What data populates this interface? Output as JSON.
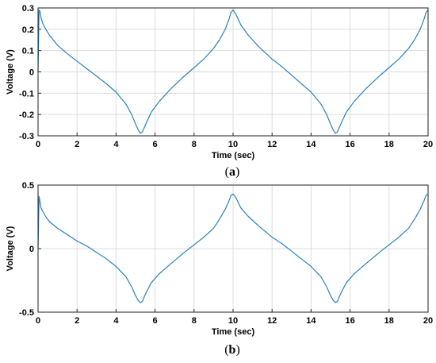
{
  "chart_data": [
    {
      "type": "line",
      "id": "a",
      "caption_letter": "a",
      "xlabel": "Time (sec)",
      "ylabel": "Voltage (V)",
      "xlim": [
        0,
        20
      ],
      "ylim": [
        -0.3,
        0.3
      ],
      "xticks": [
        0,
        2,
        4,
        6,
        8,
        10,
        12,
        14,
        16,
        18,
        20
      ],
      "yticks": [
        -0.3,
        -0.2,
        -0.1,
        0,
        0.1,
        0.2,
        0.3
      ],
      "ytick_labels": [
        "-0.3",
        "-0.2",
        "-0.1",
        "0",
        "0.1",
        "0.2",
        "0.3"
      ],
      "grid": true,
      "color": "#2a7fc0",
      "series": [
        {
          "x": [
            0,
            0.05,
            0.1,
            0.15,
            0.25,
            0.4,
            0.6,
            1.0,
            1.5,
            2.0,
            2.5,
            3.0,
            3.5,
            4.0,
            4.5,
            4.8,
            5.0,
            5.15,
            5.25,
            5.35,
            5.5,
            5.8,
            6.2,
            6.8,
            7.5,
            8.0,
            8.5,
            9.0,
            9.3,
            9.6,
            9.8,
            9.9,
            10.0,
            10.15,
            10.4,
            10.8,
            11.3,
            12.0,
            12.5,
            13.0,
            13.5,
            14.0,
            14.5,
            14.8,
            15.0,
            15.15,
            15.25,
            15.35,
            15.5,
            15.8,
            16.2,
            16.8,
            17.5,
            18.0,
            18.5,
            19.0,
            19.3,
            19.6,
            19.8,
            19.9,
            20.0
          ],
          "y": [
            0,
            0.29,
            0.285,
            0.255,
            0.225,
            0.2,
            0.17,
            0.125,
            0.085,
            0.05,
            0.015,
            -0.02,
            -0.055,
            -0.095,
            -0.15,
            -0.2,
            -0.245,
            -0.275,
            -0.288,
            -0.282,
            -0.25,
            -0.19,
            -0.14,
            -0.08,
            -0.02,
            0.02,
            0.06,
            0.11,
            0.15,
            0.2,
            0.25,
            0.28,
            0.29,
            0.27,
            0.22,
            0.17,
            0.12,
            0.06,
            0.025,
            -0.015,
            -0.055,
            -0.095,
            -0.15,
            -0.2,
            -0.245,
            -0.275,
            -0.288,
            -0.282,
            -0.25,
            -0.19,
            -0.14,
            -0.08,
            -0.02,
            0.02,
            0.06,
            0.11,
            0.15,
            0.2,
            0.25,
            0.28,
            0.29
          ]
        }
      ]
    },
    {
      "type": "line",
      "id": "b",
      "caption_letter": "b",
      "xlabel": "Time (sec)",
      "ylabel": "Voltage (V)",
      "xlim": [
        0,
        20
      ],
      "ylim": [
        -0.5,
        0.5
      ],
      "xticks": [
        0,
        2,
        4,
        6,
        8,
        10,
        12,
        14,
        16,
        18,
        20
      ],
      "yticks": [
        -0.5,
        0,
        0.5
      ],
      "ytick_labels": [
        "-0.5",
        "0",
        "0.5"
      ],
      "grid": true,
      "color": "#2a7fc0",
      "series": [
        {
          "x": [
            0,
            0.05,
            0.1,
            0.15,
            0.25,
            0.4,
            0.6,
            1.0,
            1.5,
            2.0,
            2.5,
            3.0,
            3.5,
            4.0,
            4.5,
            4.8,
            5.0,
            5.15,
            5.25,
            5.35,
            5.5,
            5.8,
            6.2,
            6.8,
            7.5,
            8.0,
            8.5,
            9.0,
            9.3,
            9.6,
            9.8,
            9.9,
            10.0,
            10.15,
            10.4,
            10.8,
            11.3,
            12.0,
            12.5,
            13.0,
            13.5,
            14.0,
            14.5,
            14.8,
            15.0,
            15.15,
            15.25,
            15.35,
            15.5,
            15.8,
            16.2,
            16.8,
            17.5,
            18.0,
            18.5,
            19.0,
            19.3,
            19.6,
            19.8,
            19.9,
            20.0
          ],
          "y": [
            0,
            0.41,
            0.37,
            0.32,
            0.29,
            0.25,
            0.21,
            0.16,
            0.11,
            0.06,
            0.02,
            -0.03,
            -0.08,
            -0.14,
            -0.22,
            -0.3,
            -0.37,
            -0.41,
            -0.425,
            -0.415,
            -0.36,
            -0.27,
            -0.2,
            -0.12,
            -0.03,
            0.03,
            0.09,
            0.16,
            0.23,
            0.31,
            0.38,
            0.42,
            0.43,
            0.4,
            0.32,
            0.25,
            0.18,
            0.09,
            0.04,
            -0.02,
            -0.08,
            -0.14,
            -0.22,
            -0.3,
            -0.37,
            -0.41,
            -0.425,
            -0.415,
            -0.36,
            -0.27,
            -0.2,
            -0.12,
            -0.03,
            0.03,
            0.09,
            0.16,
            0.23,
            0.31,
            0.38,
            0.42,
            0.43
          ]
        }
      ]
    }
  ]
}
